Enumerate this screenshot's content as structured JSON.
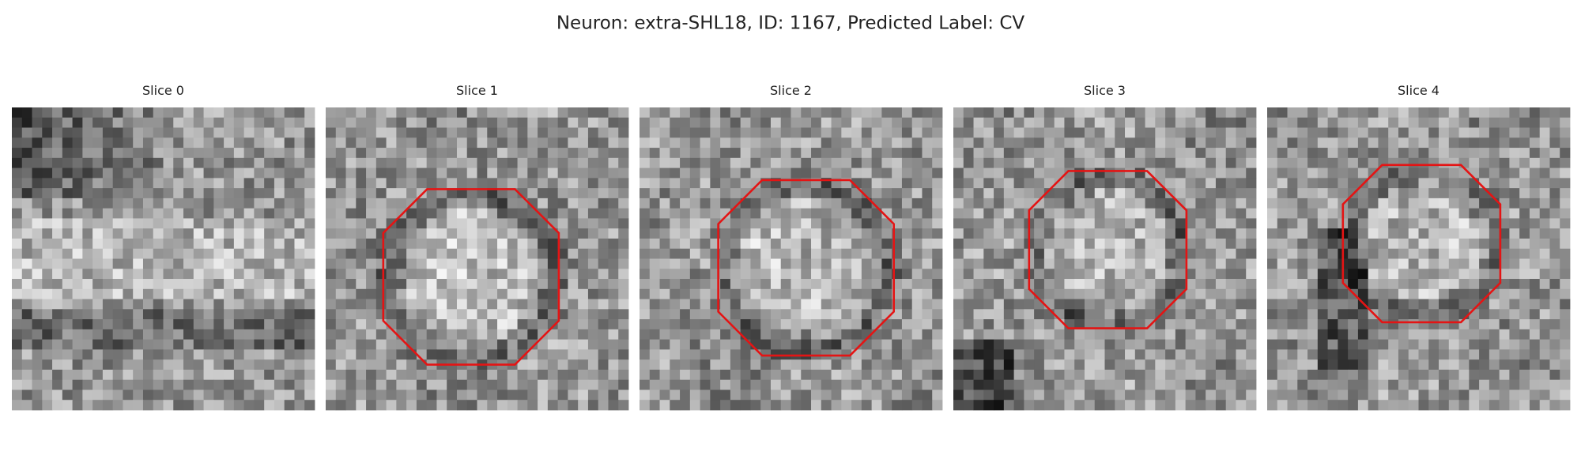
{
  "title": "Neuron: extra-SHL18, ID: 1167, Predicted Label: CV",
  "panels": [
    {
      "title": "Slice 0"
    },
    {
      "title": "Slice 1"
    },
    {
      "title": "Slice 2"
    },
    {
      "title": "Slice 3"
    },
    {
      "title": "Slice 4"
    }
  ]
}
